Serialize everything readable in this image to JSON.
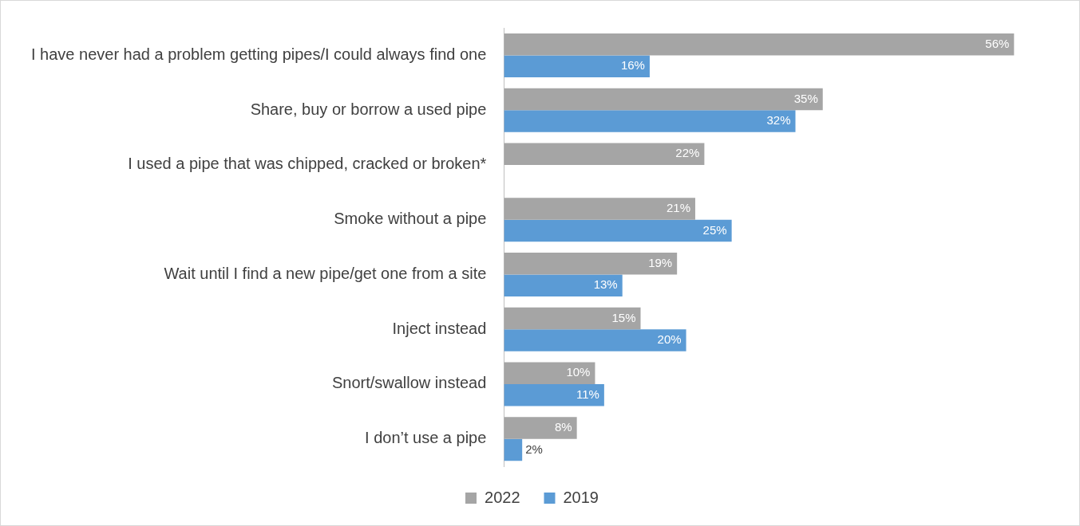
{
  "chart_data": {
    "type": "bar",
    "orientation": "horizontal",
    "legend": "bottom",
    "categories": [
      "I have never had a problem getting pipes/I could always find one",
      "Share, buy or borrow a used pipe",
      "I used a pipe that was chipped, cracked or broken*",
      "Smoke without a pipe",
      "Wait until I find a new pipe/get one from a site",
      "Inject instead",
      "Snort/swallow instead",
      "I don’t use a pipe"
    ],
    "series": [
      {
        "name": "2022",
        "color": "#a5a5a5",
        "values": [
          56,
          35,
          22,
          21,
          19,
          15,
          10,
          8
        ],
        "value_labels": [
          "56%",
          "35%",
          "22%",
          "21%",
          "19%",
          "15%",
          "10%",
          "8%"
        ]
      },
      {
        "name": "2019",
        "color": "#5b9bd5",
        "values": [
          16,
          32,
          null,
          25,
          13,
          20,
          11,
          2
        ],
        "value_labels": [
          "16%",
          "32%",
          null,
          "25%",
          "13%",
          "20%",
          "11%",
          "2%"
        ]
      }
    ]
  }
}
